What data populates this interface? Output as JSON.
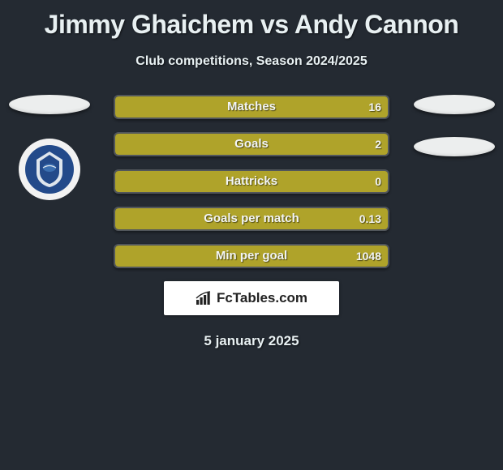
{
  "title": "Jimmy Ghaichem vs Andy Cannon",
  "subtitle": "Club competitions, Season 2024/2025",
  "player1": {
    "crest_colors": {
      "ring": "#f2f2f2",
      "inner": "#234a8a",
      "accent": "#dfe6ed"
    }
  },
  "stats": [
    {
      "label": "Matches",
      "value_r": "16",
      "fill_pct": 100,
      "fill_color": "#afa32a"
    },
    {
      "label": "Goals",
      "value_r": "2",
      "fill_pct": 100,
      "fill_color": "#afa32a"
    },
    {
      "label": "Hattricks",
      "value_r": "0",
      "fill_pct": 100,
      "fill_color": "#afa32a"
    },
    {
      "label": "Goals per match",
      "value_r": "0.13",
      "fill_pct": 100,
      "fill_color": "#afa32a"
    },
    {
      "label": "Min per goal",
      "value_r": "1048",
      "fill_pct": 100,
      "fill_color": "#afa32a"
    }
  ],
  "attribution": "FcTables.com",
  "date": "5 january 2025",
  "row_bg": "#3a3f45",
  "badge_color": "#eceeee"
}
